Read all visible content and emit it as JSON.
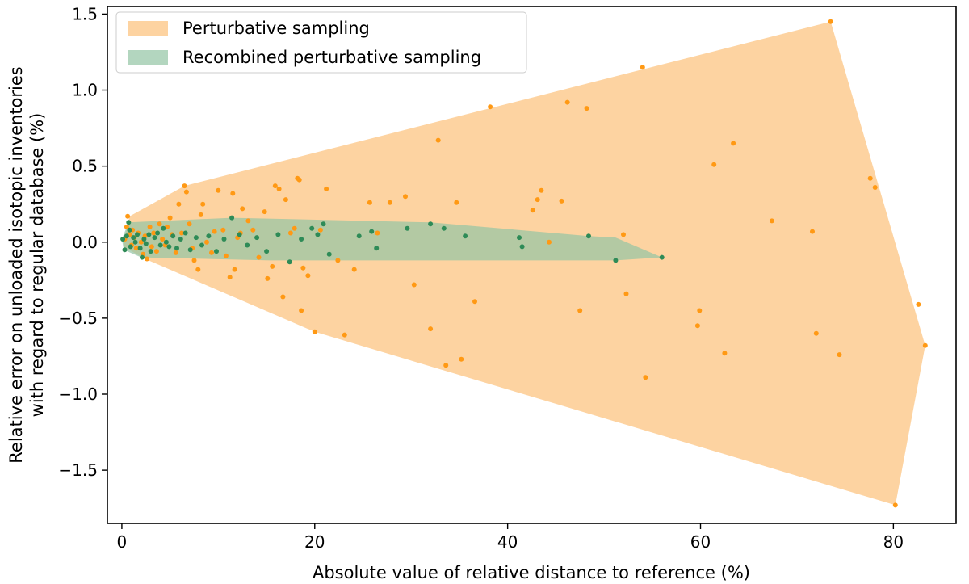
{
  "chart_data": {
    "type": "scatter",
    "xlabel": "Absolute value of relative distance to reference (%)",
    "ylabel_lines": [
      "Relative error on unloaded isotopic inventories",
      "with regard to regular database (%)"
    ],
    "xlim": [
      -1.5,
      86.5
    ],
    "ylim": [
      -1.85,
      1.55
    ],
    "xticks": [
      0,
      20,
      40,
      60,
      80
    ],
    "yticks": [
      -1.5,
      -1.0,
      -0.5,
      0.0,
      0.5,
      1.0,
      1.5
    ],
    "ytick_labels": [
      "−1.5",
      "−1.0",
      "−0.5",
      "0.0",
      "0.5",
      "1.0",
      "1.5"
    ],
    "grid": false,
    "legend_position": "top-left",
    "series": [
      {
        "name": "Perturbative sampling",
        "fill_color": "#fdd3a1",
        "point_color": "#ff9914",
        "hull": [
          [
            0.2,
            0.0
          ],
          [
            0.8,
            0.17
          ],
          [
            6.5,
            0.37
          ],
          [
            73.5,
            1.45
          ],
          [
            83.3,
            -0.68
          ],
          [
            80.2,
            -1.73
          ],
          [
            20,
            -0.59
          ],
          [
            2.4,
            -0.11
          ],
          [
            0.2,
            -0.03
          ]
        ],
        "points": [
          [
            0.3,
            0.02
          ],
          [
            0.5,
            0.1
          ],
          [
            0.6,
            0.17
          ],
          [
            0.8,
            0.05
          ],
          [
            1.0,
            -0.02
          ],
          [
            1.1,
            0.08
          ],
          [
            1.3,
            0.03
          ],
          [
            1.5,
            -0.04
          ],
          [
            1.7,
            0.06
          ],
          [
            2.0,
            0.0
          ],
          [
            2.2,
            -0.08
          ],
          [
            2.4,
            0.04
          ],
          [
            2.6,
            -0.11
          ],
          [
            2.9,
            0.1
          ],
          [
            3.1,
            -0.03
          ],
          [
            3.3,
            0.06
          ],
          [
            3.6,
            -0.06
          ],
          [
            3.9,
            0.12
          ],
          [
            4.2,
            0.02
          ],
          [
            4.5,
            -0.02
          ],
          [
            4.7,
            0.1
          ],
          [
            5.0,
            0.16
          ],
          [
            5.2,
            0.05
          ],
          [
            5.6,
            -0.07
          ],
          [
            5.9,
            0.25
          ],
          [
            6.2,
            0.06
          ],
          [
            6.5,
            0.37
          ],
          [
            6.7,
            0.33
          ],
          [
            7.0,
            0.12
          ],
          [
            7.3,
            -0.04
          ],
          [
            7.5,
            -0.12
          ],
          [
            7.9,
            -0.18
          ],
          [
            8.2,
            0.18
          ],
          [
            8.4,
            0.25
          ],
          [
            8.8,
            0.0
          ],
          [
            9.3,
            -0.07
          ],
          [
            9.6,
            0.07
          ],
          [
            10.0,
            0.34
          ],
          [
            10.5,
            0.08
          ],
          [
            10.8,
            -0.09
          ],
          [
            11.2,
            -0.23
          ],
          [
            11.5,
            0.32
          ],
          [
            11.7,
            -0.18
          ],
          [
            12.0,
            0.03
          ],
          [
            12.3,
            0.06
          ],
          [
            12.5,
            0.22
          ],
          [
            13.1,
            0.14
          ],
          [
            13.6,
            0.08
          ],
          [
            14.2,
            -0.1
          ],
          [
            14.8,
            0.2
          ],
          [
            15.1,
            -0.24
          ],
          [
            15.6,
            -0.16
          ],
          [
            15.9,
            0.37
          ],
          [
            16.3,
            0.35
          ],
          [
            16.7,
            -0.36
          ],
          [
            17.0,
            0.28
          ],
          [
            17.5,
            0.06
          ],
          [
            17.9,
            0.09
          ],
          [
            18.2,
            0.42
          ],
          [
            18.4,
            0.41
          ],
          [
            18.6,
            -0.45
          ],
          [
            18.8,
            -0.17
          ],
          [
            19.3,
            -0.22
          ],
          [
            20.0,
            -0.59
          ],
          [
            20.6,
            0.08
          ],
          [
            21.2,
            0.35
          ],
          [
            22.4,
            -0.12
          ],
          [
            23.1,
            -0.61
          ],
          [
            24.1,
            -0.18
          ],
          [
            25.7,
            0.26
          ],
          [
            26.5,
            0.06
          ],
          [
            27.8,
            0.26
          ],
          [
            29.4,
            0.3
          ],
          [
            30.3,
            -0.28
          ],
          [
            32.0,
            -0.57
          ],
          [
            32.8,
            0.67
          ],
          [
            33.6,
            -0.81
          ],
          [
            34.7,
            0.26
          ],
          [
            35.2,
            -0.77
          ],
          [
            36.6,
            -0.39
          ],
          [
            38.2,
            0.89
          ],
          [
            42.6,
            0.21
          ],
          [
            43.1,
            0.28
          ],
          [
            43.5,
            0.34
          ],
          [
            44.3,
            0.0
          ],
          [
            45.6,
            0.27
          ],
          [
            46.2,
            0.92
          ],
          [
            47.5,
            -0.45
          ],
          [
            48.2,
            0.88
          ],
          [
            52.0,
            0.05
          ],
          [
            52.3,
            -0.34
          ],
          [
            54.0,
            1.15
          ],
          [
            54.3,
            -0.89
          ],
          [
            59.7,
            -0.55
          ],
          [
            59.9,
            -0.45
          ],
          [
            61.4,
            0.51
          ],
          [
            62.5,
            -0.73
          ],
          [
            63.4,
            0.65
          ],
          [
            67.4,
            0.14
          ],
          [
            71.6,
            0.07
          ],
          [
            72.0,
            -0.6
          ],
          [
            73.5,
            1.45
          ],
          [
            74.4,
            -0.74
          ],
          [
            77.6,
            0.42
          ],
          [
            78.1,
            0.36
          ],
          [
            80.2,
            -1.73
          ],
          [
            82.6,
            -0.41
          ],
          [
            83.3,
            -0.68
          ]
        ]
      },
      {
        "name": "Recombined perturbative sampling",
        "fill_color": "#93c4a4",
        "fill_opacity": 0.7,
        "point_color": "#2e8b57",
        "hull": [
          [
            0.0,
            0.02
          ],
          [
            0.7,
            0.13
          ],
          [
            11.4,
            0.16
          ],
          [
            32.0,
            0.13
          ],
          [
            48.4,
            0.04
          ],
          [
            51.2,
            0.03
          ],
          [
            56.0,
            -0.1
          ],
          [
            51.2,
            -0.12
          ],
          [
            15.4,
            -0.12
          ],
          [
            2.0,
            -0.1
          ],
          [
            0.2,
            -0.05
          ]
        ],
        "points": [
          [
            0.1,
            0.02
          ],
          [
            0.3,
            -0.05
          ],
          [
            0.5,
            0.04
          ],
          [
            0.7,
            0.13
          ],
          [
            0.8,
            0.08
          ],
          [
            0.9,
            -0.03
          ],
          [
            1.2,
            0.03
          ],
          [
            1.4,
            0.0
          ],
          [
            1.6,
            0.05
          ],
          [
            1.9,
            -0.04
          ],
          [
            2.1,
            -0.1
          ],
          [
            2.3,
            0.02
          ],
          [
            2.5,
            -0.01
          ],
          [
            2.8,
            0.05
          ],
          [
            3.0,
            -0.06
          ],
          [
            3.4,
            0.03
          ],
          [
            3.7,
            0.06
          ],
          [
            4.0,
            -0.02
          ],
          [
            4.3,
            0.09
          ],
          [
            4.6,
            0.0
          ],
          [
            4.9,
            -0.03
          ],
          [
            5.3,
            0.04
          ],
          [
            5.7,
            -0.04
          ],
          [
            6.1,
            0.02
          ],
          [
            6.6,
            0.06
          ],
          [
            7.1,
            -0.05
          ],
          [
            7.7,
            0.03
          ],
          [
            8.3,
            -0.02
          ],
          [
            9.0,
            0.04
          ],
          [
            9.8,
            -0.06
          ],
          [
            10.6,
            0.02
          ],
          [
            11.4,
            0.16
          ],
          [
            12.2,
            0.05
          ],
          [
            13.0,
            -0.02
          ],
          [
            14.0,
            0.03
          ],
          [
            15.0,
            -0.06
          ],
          [
            16.2,
            0.05
          ],
          [
            17.4,
            -0.13
          ],
          [
            18.6,
            0.02
          ],
          [
            19.7,
            0.09
          ],
          [
            20.3,
            0.05
          ],
          [
            20.9,
            0.12
          ],
          [
            21.5,
            -0.08
          ],
          [
            24.6,
            0.04
          ],
          [
            25.9,
            0.07
          ],
          [
            26.4,
            -0.04
          ],
          [
            29.6,
            0.09
          ],
          [
            32.0,
            0.12
          ],
          [
            33.4,
            0.09
          ],
          [
            35.6,
            0.04
          ],
          [
            41.2,
            0.03
          ],
          [
            41.5,
            -0.03
          ],
          [
            48.4,
            0.04
          ],
          [
            51.2,
            -0.12
          ],
          [
            56.0,
            -0.1
          ]
        ]
      }
    ]
  }
}
